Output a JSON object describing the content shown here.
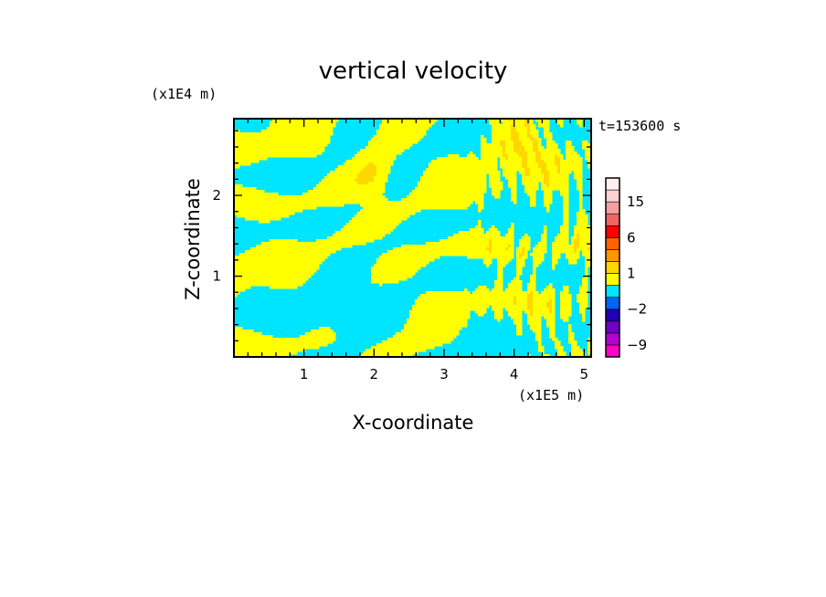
{
  "chart_data": {
    "type": "heatmap",
    "title": "vertical velocity",
    "time_label": "t=153600 s",
    "x_axis": {
      "label": "X-coordinate",
      "multiplier": "(x1E5 m)",
      "range": [
        0,
        5.1
      ],
      "ticks": [
        1,
        2,
        3,
        4,
        5
      ],
      "tick_labels": [
        "1",
        "2",
        "3",
        "4",
        "5"
      ],
      "minor_step": 0.2
    },
    "z_axis": {
      "label": "Z-coordinate",
      "multiplier": "(x1E4 m)",
      "range": [
        0,
        2.95
      ],
      "ticks": [
        1,
        2
      ],
      "tick_labels": [
        "1",
        "2"
      ],
      "minor_step": 0.2
    },
    "field_colors": {
      "positive": "#ffff00",
      "negative": "#00e5ff",
      "inner_positive": "#ffd700"
    },
    "colorbar": {
      "levels": [
        {
          "lo": -12,
          "hi": -9,
          "color": "#ff00c8"
        },
        {
          "lo": -9,
          "hi": -6,
          "color": "#b400d2"
        },
        {
          "lo": -6,
          "hi": -4,
          "color": "#6e00c8"
        },
        {
          "lo": -4,
          "hi": -2,
          "color": "#2000b4"
        },
        {
          "lo": -2,
          "hi": -1,
          "color": "#0064ff"
        },
        {
          "lo": -1,
          "hi": 0,
          "color": "#00e5ff"
        },
        {
          "lo": 0,
          "hi": 1,
          "color": "#ffff00"
        },
        {
          "lo": 1,
          "hi": 2,
          "color": "#ffd700"
        },
        {
          "lo": 2,
          "hi": 4,
          "color": "#ff9600"
        },
        {
          "lo": 4,
          "hi": 6,
          "color": "#ff6400"
        },
        {
          "lo": 6,
          "hi": 9,
          "color": "#ff0000"
        },
        {
          "lo": 9,
          "hi": 12,
          "color": "#f06464"
        },
        {
          "lo": 12,
          "hi": 15,
          "color": "#f5a0a0"
        },
        {
          "lo": 15,
          "hi": 20,
          "color": "#fad2d2"
        },
        {
          "lo": 20,
          "hi": 25,
          "color": "#fff0f0"
        }
      ],
      "labels": [
        {
          "value": 15,
          "text": "15"
        },
        {
          "value": 6,
          "text": "6"
        },
        {
          "value": 1,
          "text": "1"
        },
        {
          "value": -2,
          "text": "−2"
        },
        {
          "value": -9,
          "text": "−9"
        }
      ]
    },
    "field_description": "wavy alternating positive/negative bands; large negative cell near x=1.7E5 m, z=0.4E4 m; large positive cell near x=4.0E5 m, z=2.7E4 m; positive cell near x=2.0E5 m, z=2.2E4 m; fine vertical striations for x>3.3E5 m"
  }
}
